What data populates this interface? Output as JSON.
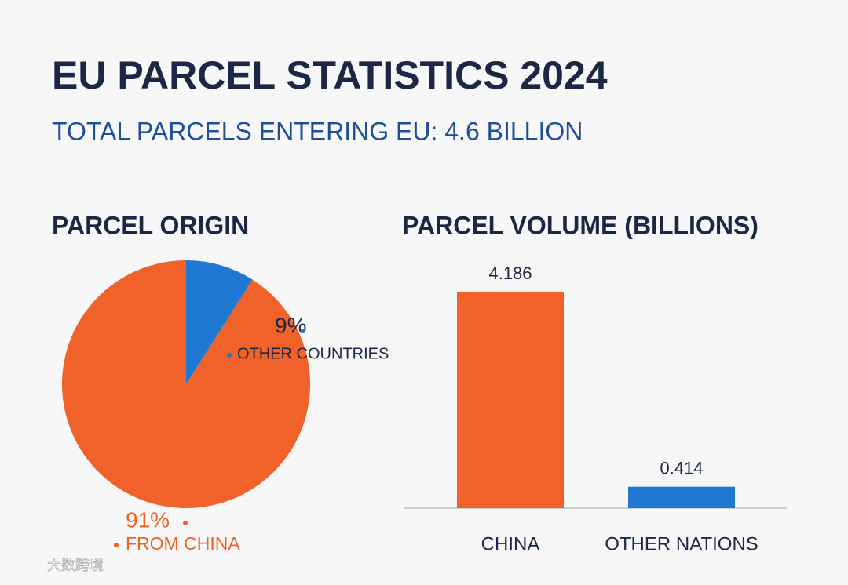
{
  "header": {
    "title": "EU PARCEL STATISTICS 2024",
    "subtitle": "TOTAL PARCELS ENTERING EU: 4.6 BILLION"
  },
  "chart_data": [
    {
      "type": "pie",
      "title": "PARCEL ORIGIN",
      "categories": [
        "OTHER COUNTRIES",
        "FROM CHINA"
      ],
      "values": [
        9,
        91
      ],
      "value_labels": [
        "9%",
        "91%"
      ],
      "colors": [
        "#1f78d1",
        "#f0622a"
      ]
    },
    {
      "type": "bar",
      "title": "PARCEL VOLUME (BILLIONS)",
      "categories": [
        "CHINA",
        "OTHER NATIONS"
      ],
      "values": [
        4.186,
        0.414
      ],
      "colors": [
        "#f0622a",
        "#1f78d1"
      ]
    }
  ],
  "watermark": "大数跨境"
}
